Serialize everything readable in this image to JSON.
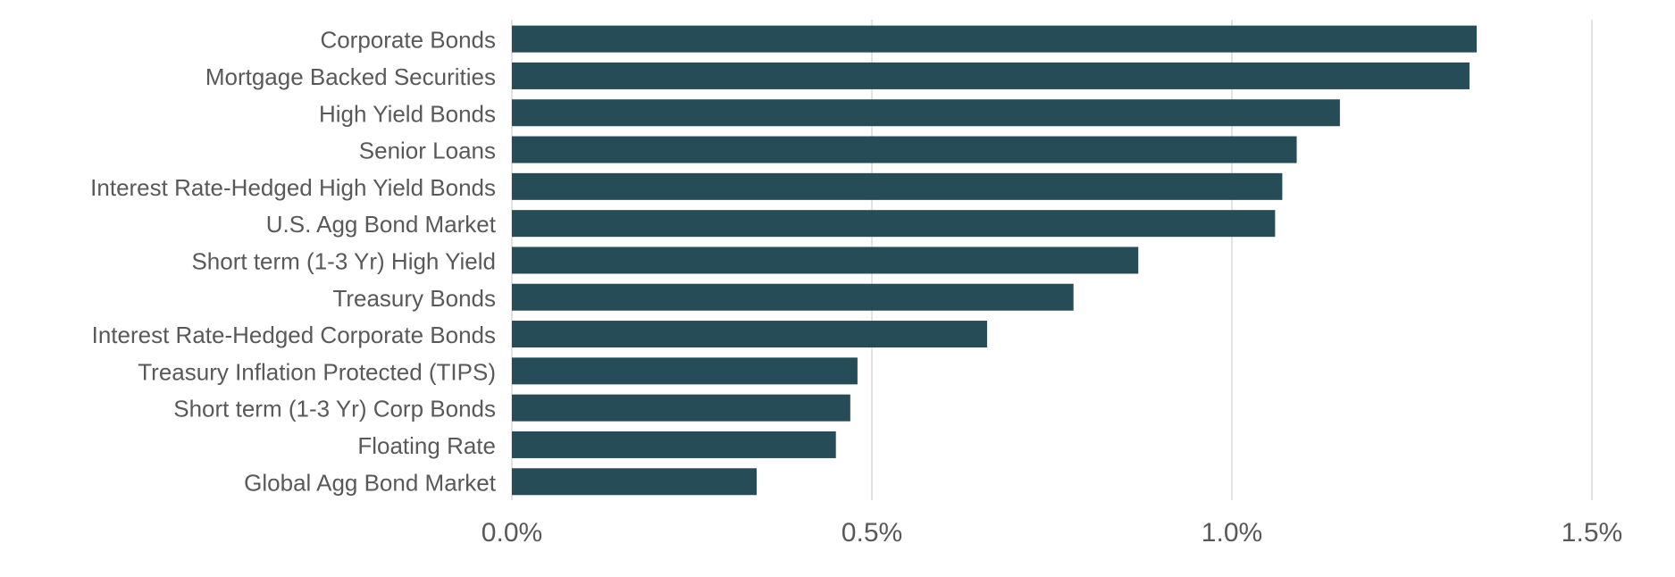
{
  "chart_data": {
    "type": "bar",
    "orientation": "horizontal",
    "categories": [
      "Corporate Bonds",
      "Mortgage Backed Securities",
      "High Yield Bonds",
      "Senior Loans",
      "Interest Rate-Hedged High Yield Bonds",
      "U.S. Agg Bond Market",
      "Short term (1-3 Yr) High Yield",
      "Treasury Bonds",
      "Interest Rate-Hedged Corporate Bonds",
      "Treasury Inflation Protected (TIPS)",
      "Short term (1-3 Yr) Corp Bonds",
      "Floating Rate",
      "Global Agg Bond Market"
    ],
    "values": [
      1.34,
      1.33,
      1.15,
      1.09,
      1.07,
      1.06,
      0.87,
      0.78,
      0.66,
      0.48,
      0.47,
      0.45,
      0.34
    ],
    "x_ticks": [
      0.0,
      0.5,
      1.0,
      1.5
    ],
    "x_tick_labels": [
      "0.0%",
      "0.5%",
      "1.0%",
      "1.5%"
    ],
    "xlim": [
      0,
      1.5
    ],
    "grid": true,
    "legend": "none",
    "bar_color": "#264d57",
    "title": "",
    "xlabel": "",
    "ylabel": ""
  }
}
